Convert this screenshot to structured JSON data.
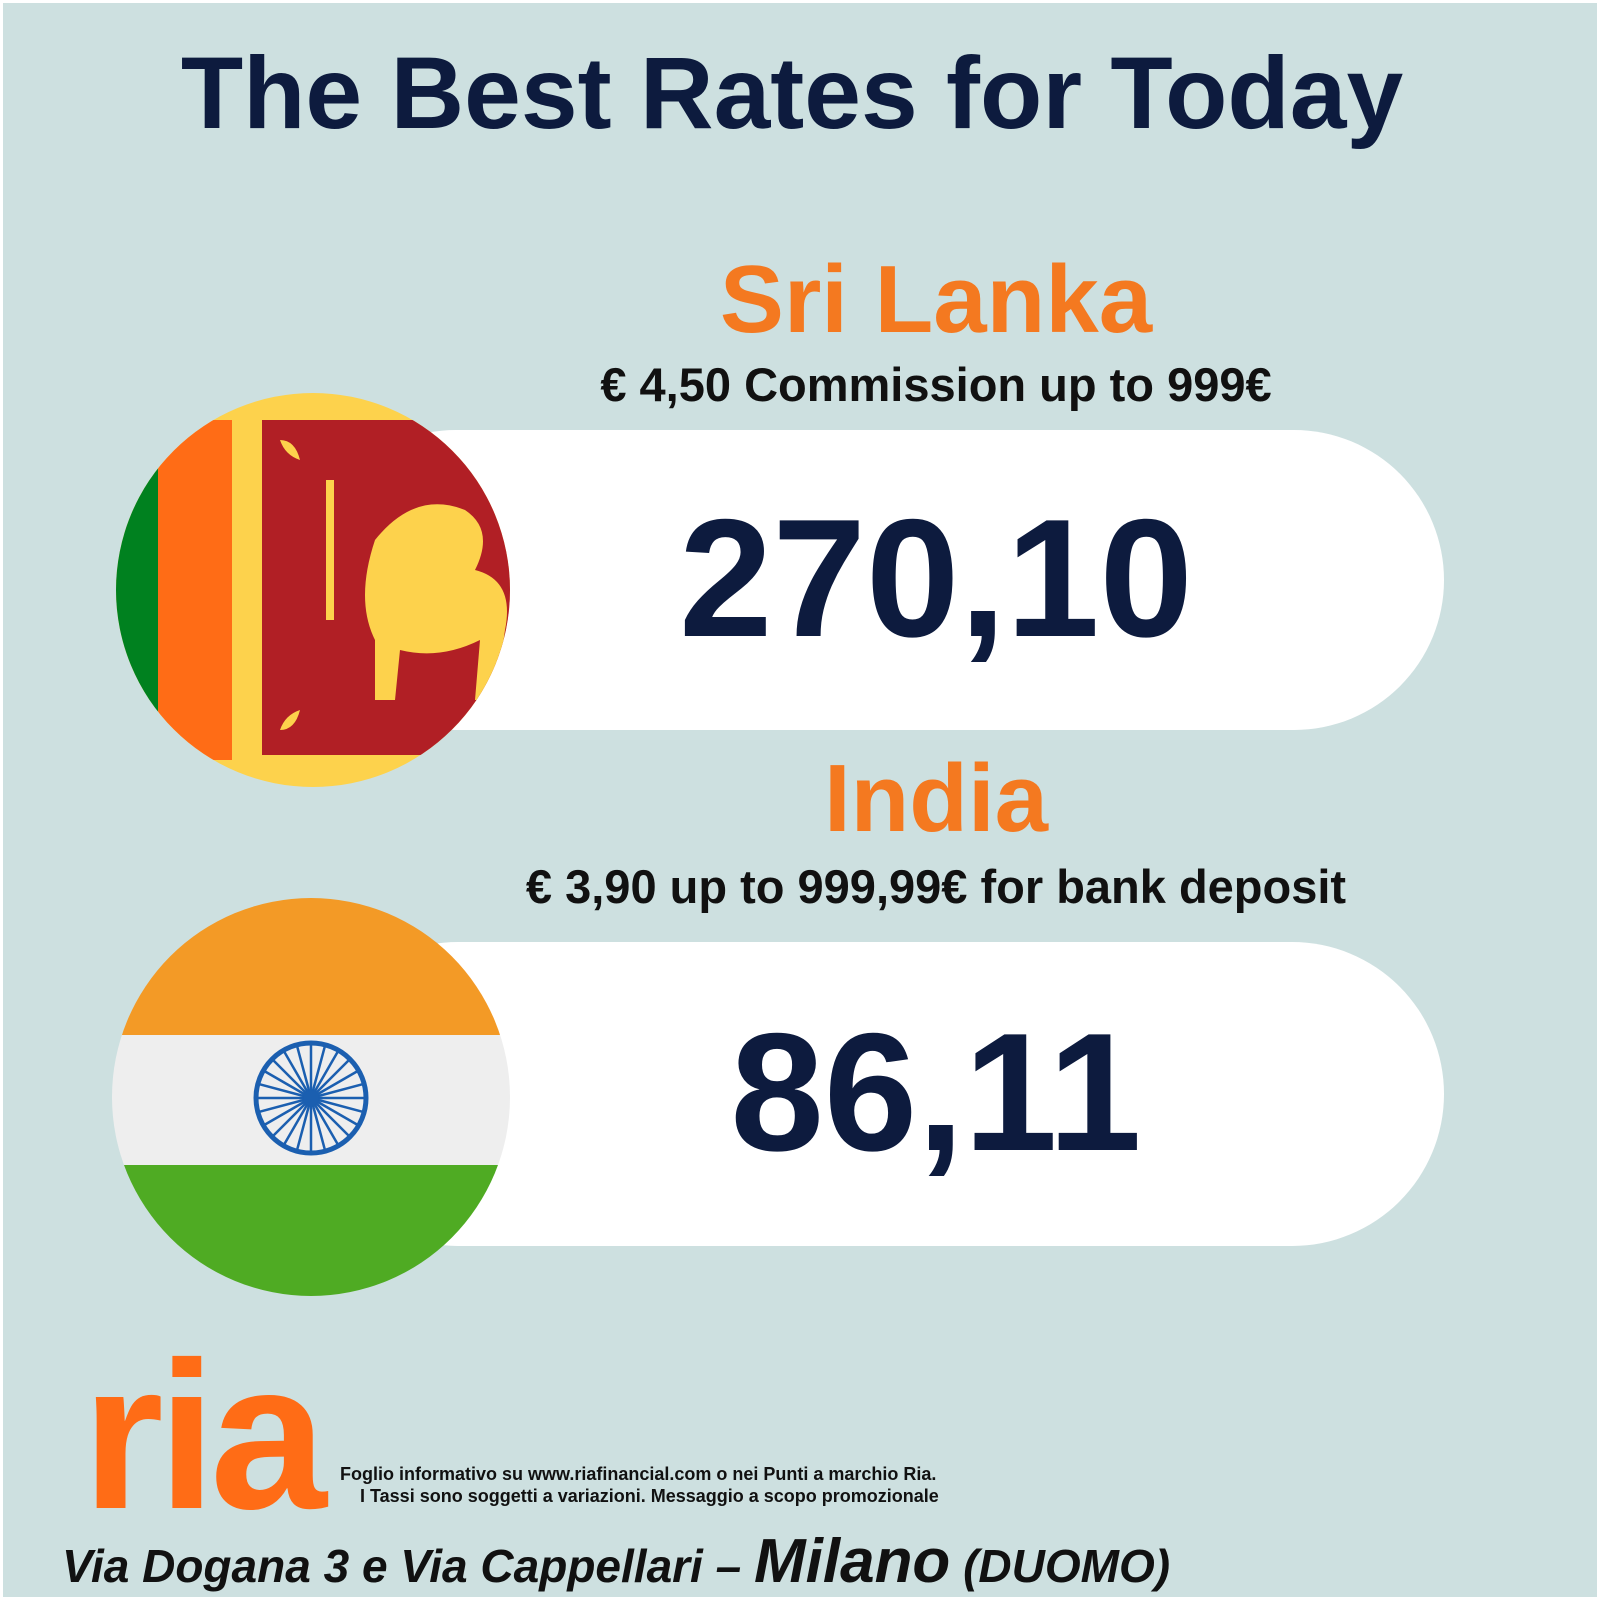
{
  "header": {
    "title": "The Best Rates for Today"
  },
  "rates": [
    {
      "country": "Sri Lanka",
      "commission": "€ 4,50 Commission up to 999€",
      "rate": "270,10"
    },
    {
      "country": "India",
      "commission": "€ 3,90 up to 999,99€ for bank deposit",
      "rate": "86,11"
    }
  ],
  "footer": {
    "logo": "ria",
    "disclaimer": [
      "Foglio informativo su www.riafinancial.com  o nei Punti a marchio Ria.",
      "I Tassi sono soggetti a variazioni. Messaggio a scopo promozionale"
    ],
    "address": [
      "Via Dogana 3 e Via Cappellari – ",
      "Milano",
      " (DUOMO)"
    ]
  }
}
